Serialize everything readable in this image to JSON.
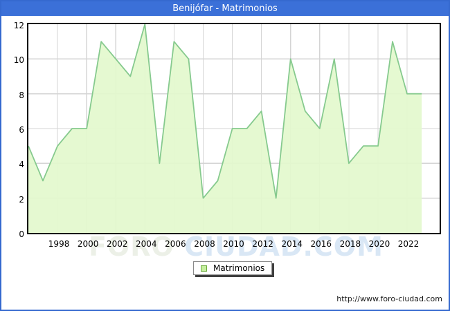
{
  "title": "Benijófar - Matrimonios",
  "watermark": {
    "part1": "FORO ",
    "part2": "CIUDAD.COM"
  },
  "legend": {
    "label": "Matrimonios"
  },
  "footer": {
    "url": "http://www.foro-ciudad.com"
  },
  "colors": {
    "frame_blue": "#3b70d8",
    "area_fill": "#e3f9cd",
    "line_green": "#86ca8e",
    "gridline": "#d4d4d4",
    "plot_border": "#000000",
    "legend_swatch_fill": "#c6ef9f",
    "legend_swatch_border": "#69aa3a",
    "watermark_green": "#ecf0e7",
    "watermark_blue": "#d9e7f5"
  },
  "chart_data": {
    "type": "area",
    "title": "Benijófar - Matrimonios",
    "series_name": "Matrimonios",
    "x": [
      1996,
      1997,
      1998,
      1999,
      2000,
      2001,
      2002,
      2003,
      2004,
      2005,
      2006,
      2007,
      2008,
      2009,
      2010,
      2011,
      2012,
      2013,
      2014,
      2015,
      2016,
      2017,
      2018,
      2019,
      2020,
      2021,
      2022,
      2023
    ],
    "values": [
      5,
      3,
      5,
      6,
      6,
      11,
      10,
      9,
      12,
      4,
      11,
      10,
      2,
      3,
      6,
      6,
      7,
      2,
      10,
      7,
      6,
      10,
      4,
      5,
      5,
      11,
      8,
      8
    ],
    "xlabel": "",
    "ylabel": "",
    "ylim": [
      0,
      12
    ],
    "yticks": [
      0,
      2,
      4,
      6,
      8,
      10,
      12
    ],
    "xticks": [
      1998,
      2000,
      2002,
      2004,
      2006,
      2008,
      2010,
      2012,
      2014,
      2016,
      2018,
      2020,
      2022
    ],
    "grid": true,
    "legend_position": "bottom-center"
  }
}
